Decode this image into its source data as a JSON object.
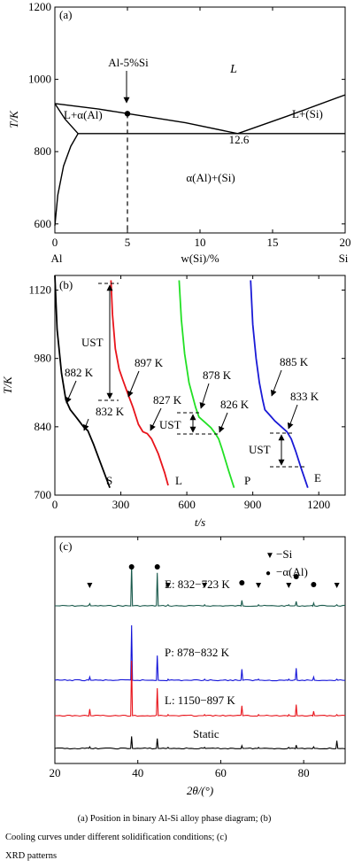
{
  "chart_data": [
    {
      "type": "line",
      "panel_label": "(a)",
      "xlabel": "w(Si)/%",
      "ylabel": "T/K",
      "xlim": [
        0,
        20
      ],
      "ylim": [
        575,
        1200
      ],
      "x_ticks": [
        "0",
        "5",
        "10",
        "15",
        "20"
      ],
      "y_ticks": [
        "600",
        "800",
        "1000",
        "1200"
      ],
      "x_end_labels": {
        "left": "Al",
        "right": "Si"
      },
      "series": [
        {
          "x": [
            0,
            3,
            6,
            9,
            12.6
          ],
          "y": [
            933,
            918,
            899,
            880,
            850
          ]
        },
        {
          "x": [
            12.6,
            16,
            20
          ],
          "y": [
            850,
            898,
            957
          ]
        },
        {
          "x": [
            1.6,
            20
          ],
          "y": [
            850,
            850
          ]
        },
        {
          "x": [
            0,
            0.2,
            0.6,
            1.1,
            1.6
          ],
          "y": [
            595,
            680,
            760,
            815,
            850
          ]
        },
        {
          "x": [
            0,
            0.7,
            1.6
          ],
          "y": [
            933,
            890,
            850
          ]
        }
      ],
      "marker_point": {
        "x": 5,
        "y": 905
      },
      "annotations": {
        "composition": "Al-5%Si",
        "liquid": "L",
        "liquid_alpha": "L+α(Al)",
        "liquid_si": "L+(Si)",
        "solid": "α(Al)+(Si)",
        "eutectic": "12.6"
      }
    },
    {
      "type": "line",
      "panel_label": "(b)",
      "xlabel": "t/s",
      "ylabel": "T/K",
      "xlim": [
        0,
        1320
      ],
      "ylim": [
        700,
        1150
      ],
      "x_ticks": [
        "0",
        "300",
        "600",
        "900",
        "1200"
      ],
      "y_ticks": [
        "700",
        "840",
        "980",
        "1120"
      ],
      "series": [
        {
          "name": "S",
          "color": "#000000",
          "x": [
            0,
            10,
            30,
            50,
            70,
            100,
            130,
            150,
            175,
            200,
            225,
            250
          ],
          "y": [
            1150,
            1040,
            950,
            895,
            875,
            858,
            840,
            832,
            805,
            775,
            745,
            715
          ]
        },
        {
          "name": "L",
          "color": "#e8141b",
          "x": [
            255,
            262,
            275,
            292,
            310,
            330,
            355,
            380,
            400,
            420,
            440,
            470,
            500,
            515
          ],
          "y": [
            1140,
            1070,
            1000,
            958,
            935,
            910,
            880,
            845,
            830,
            826,
            815,
            785,
            745,
            720
          ]
        },
        {
          "name": "P",
          "color": "#22e024",
          "x": [
            565,
            575,
            590,
            610,
            625,
            640,
            655,
            680,
            710,
            730,
            745,
            760,
            790,
            815
          ],
          "y": [
            1140,
            1060,
            990,
            930,
            905,
            880,
            860,
            850,
            838,
            826,
            815,
            795,
            750,
            715
          ]
        },
        {
          "name": "E",
          "color": "#1a1ad6",
          "x": [
            890,
            900,
            915,
            930,
            945,
            955,
            975,
            1000,
            1030,
            1055,
            1075,
            1095,
            1120,
            1150
          ],
          "y": [
            1140,
            1050,
            980,
            930,
            895,
            875,
            865,
            852,
            840,
            830,
            815,
            790,
            755,
            715
          ]
        }
      ],
      "point_labels": [
        "882 K",
        "832 K",
        "897 K",
        "827 K",
        "878 K",
        "826 K",
        "885 K",
        "833 K"
      ],
      "bracket_label": "UST"
    },
    {
      "type": "line",
      "panel_label": "(c)",
      "xlabel": "2θ/(°)",
      "xlim": [
        20,
        90
      ],
      "x_ticks": [
        "20",
        "40",
        "60",
        "80"
      ],
      "legend": [
        {
          "marker": "▼",
          "label": "Si"
        },
        {
          "marker": "●",
          "label": "α(Al)"
        }
      ],
      "peaks": {
        "al": [
          38.5,
          44.7,
          65.1,
          78.2,
          82.4
        ],
        "si": [
          28.4,
          47.3,
          56.1,
          69.1,
          76.4,
          88.0
        ]
      },
      "series": [
        {
          "name": "E: 832−723 K",
          "color": "#1a5a4c",
          "heights": [
            75,
            60,
            10,
            8,
            5
          ],
          "si_heights": [
            4,
            2,
            2,
            2,
            2,
            2
          ]
        },
        {
          "name": "P: 878−832 K",
          "color": "#1414d8",
          "heights": [
            100,
            45,
            20,
            22,
            6
          ],
          "si_heights": [
            6,
            2,
            2,
            2,
            2,
            2
          ]
        },
        {
          "name": "L: 1150−897 K",
          "color": "#e8141b",
          "heights": [
            100,
            50,
            18,
            20,
            8
          ],
          "si_heights": [
            12,
            2,
            2,
            2,
            2,
            2
          ]
        },
        {
          "name": "Static",
          "color": "#000000",
          "heights": [
            22,
            18,
            5,
            6,
            3
          ],
          "si_heights": [
            3,
            2,
            2,
            2,
            2,
            14
          ]
        }
      ]
    }
  ],
  "caption": {
    "line1": "(a) Position in binary Al-Si alloy phase diagram; (b)",
    "line2": "Cooling curves under different solidification conditions; (c)",
    "line3": "XRD patterns"
  }
}
